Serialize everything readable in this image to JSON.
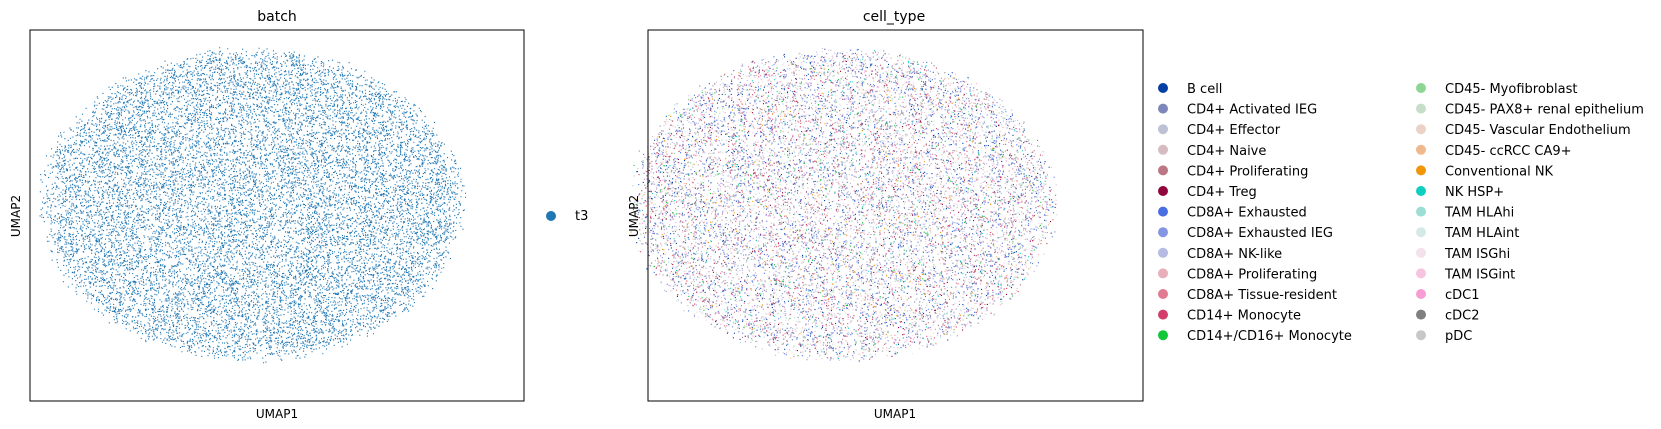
{
  "chart_data": [
    {
      "type": "scatter",
      "title": "batch",
      "xlabel": "UMAP1",
      "ylabel": "UMAP2",
      "grid": false,
      "legend_placement": "right",
      "series": [
        {
          "name": "t3",
          "color": "#1f77b4"
        }
      ]
    },
    {
      "type": "scatter",
      "title": "cell_type",
      "xlabel": "UMAP1",
      "ylabel": "UMAP2",
      "grid": false,
      "legend_placement": "right",
      "legend_columns": 2,
      "series": [
        {
          "name": "B cell",
          "color": "#023fa5",
          "w": 5
        },
        {
          "name": "CD4+ Activated IEG",
          "color": "#7d87b9",
          "w": 3
        },
        {
          "name": "CD4+ Effector",
          "color": "#bec1d4",
          "w": 2
        },
        {
          "name": "CD4+ Naive",
          "color": "#d6bcc0",
          "w": 2
        },
        {
          "name": "CD4+ Proliferating",
          "color": "#bb7784",
          "w": 1
        },
        {
          "name": "CD4+ Treg",
          "color": "#8e063b",
          "w": 2
        },
        {
          "name": "CD8A+ Exhausted",
          "color": "#4a6fe3",
          "w": 6
        },
        {
          "name": "CD8A+ Exhausted IEG",
          "color": "#8595e1",
          "w": 4
        },
        {
          "name": "CD8A+ NK-like",
          "color": "#b5bbe3",
          "w": 3
        },
        {
          "name": "CD8A+ Proliferating",
          "color": "#e6afb9",
          "w": 2
        },
        {
          "name": "CD8A+ Tissue-resident",
          "color": "#e07b91",
          "w": 3
        },
        {
          "name": "CD14+ Monocyte",
          "color": "#d33f6a",
          "w": 3
        },
        {
          "name": "CD14+/CD16+ Monocyte",
          "color": "#11c638",
          "w": 1
        },
        {
          "name": "CD45- Myofibroblast",
          "color": "#8dd593",
          "w": 1
        },
        {
          "name": "CD45- PAX8+ renal epithelium",
          "color": "#c6dec7",
          "w": 1
        },
        {
          "name": "CD45- Vascular Endothelium",
          "color": "#ead3c6",
          "w": 2
        },
        {
          "name": "CD45- ccRCC CA9+",
          "color": "#f0b98d",
          "w": 1
        },
        {
          "name": "Conventional NK",
          "color": "#ef9708",
          "w": 1
        },
        {
          "name": "NK HSP+",
          "color": "#0fcfc0",
          "w": 1
        },
        {
          "name": "TAM HLAhi",
          "color": "#9cded6",
          "w": 1
        },
        {
          "name": "TAM HLAint",
          "color": "#d5eae7",
          "w": 1
        },
        {
          "name": "TAM ISGhi",
          "color": "#f3e1eb",
          "w": 1
        },
        {
          "name": "TAM ISGint",
          "color": "#f6c4e1",
          "w": 1
        },
        {
          "name": "cDC1",
          "color": "#f79cd4",
          "w": 1
        },
        {
          "name": "cDC2",
          "color": "#7f7f7f",
          "w": 1
        },
        {
          "name": "pDC",
          "color": "#c7c7c7",
          "w": 1
        }
      ]
    }
  ]
}
